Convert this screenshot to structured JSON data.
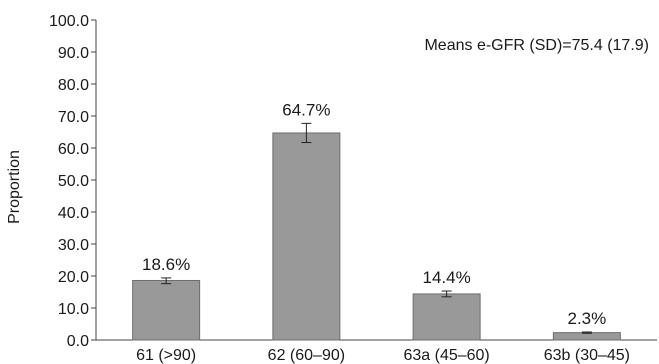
{
  "chart_data": {
    "type": "bar",
    "categories": [
      "61 (>90)",
      "62 (60–90)",
      "63a (45–60)",
      "63b (30–45)"
    ],
    "values": [
      18.6,
      64.7,
      14.4,
      2.3
    ],
    "data_labels": [
      "18.6%",
      "64.7%",
      "14.4%",
      "2.3%"
    ],
    "error_bars": [
      {
        "low": 17.6,
        "high": 19.4
      },
      {
        "low": 61.7,
        "high": 67.7
      },
      {
        "low": 13.5,
        "high": 15.3
      },
      {
        "low": 2.1,
        "high": 2.5
      }
    ],
    "ylabel": "Proportion",
    "ylim": [
      0,
      100
    ],
    "yticks": [
      "0.0",
      "10.0",
      "20.0",
      "30.0",
      "40.0",
      "50.0",
      "60.0",
      "70.0",
      "80.0",
      "90.0",
      "100.0"
    ],
    "annotation": "Means e-GFR (SD)=75.4 (17.9)",
    "grid": false,
    "colors": {
      "bar": "#999999",
      "bar_edge": "#6e6e6e",
      "axis": "#444444"
    }
  }
}
